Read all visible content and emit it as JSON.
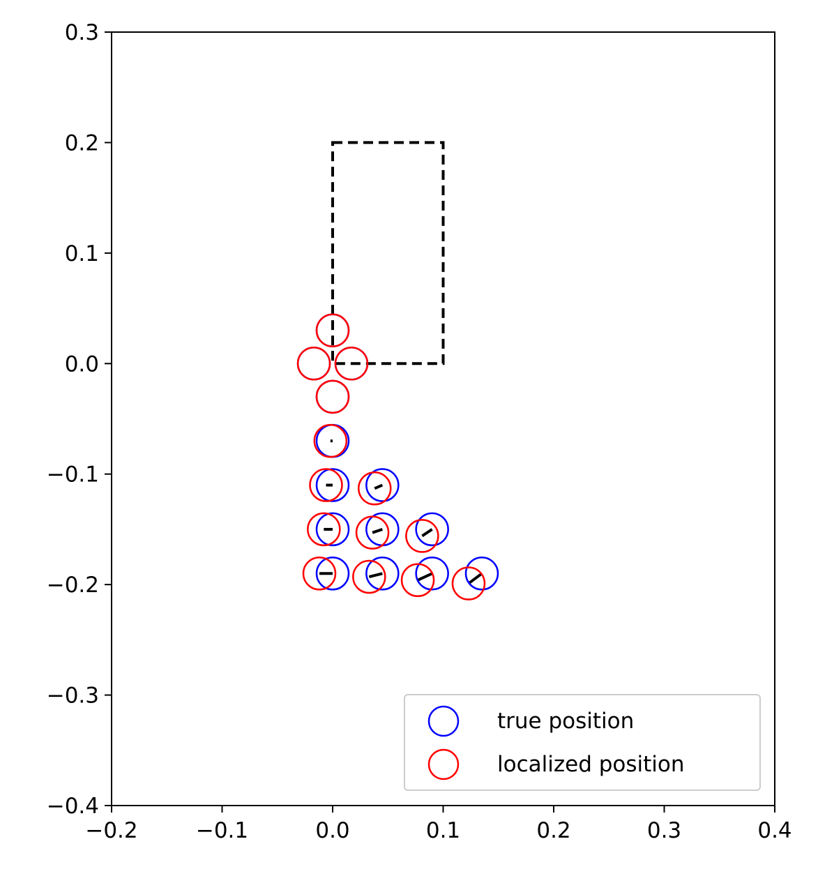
{
  "chart_data": {
    "type": "scatter",
    "title": "",
    "xlabel": "",
    "ylabel": "",
    "xlim": [
      -0.2,
      0.4
    ],
    "ylim": [
      -0.4,
      0.3
    ],
    "x_ticks": [
      -0.2,
      -0.1,
      0.0,
      0.1,
      0.2,
      0.3,
      0.4
    ],
    "y_ticks": [
      -0.4,
      -0.3,
      -0.2,
      -0.1,
      0.0,
      0.1,
      0.2,
      0.3
    ],
    "x_tick_labels": [
      "−0.2",
      "−0.1",
      "0.0",
      "0.1",
      "0.2",
      "0.3",
      "0.4"
    ],
    "y_tick_labels": [
      "−0.4",
      "−0.3",
      "−0.2",
      "−0.1",
      "0.0",
      "0.1",
      "0.2",
      "0.3"
    ],
    "grid": false,
    "legend_position": "bottom-right",
    "rectangle": {
      "x": [
        0.0,
        0.1
      ],
      "y": [
        0.0,
        0.2
      ],
      "style": "dashed",
      "color": "#000000"
    },
    "series": [
      {
        "name": "true position",
        "color": "#0000ff",
        "marker": "open-circle",
        "points": [
          {
            "x": 0.0,
            "y": 0.03
          },
          {
            "x": -0.017,
            "y": 0.0
          },
          {
            "x": 0.017,
            "y": 0.0
          },
          {
            "x": 0.0,
            "y": -0.03
          },
          {
            "x": 0.0,
            "y": -0.07
          },
          {
            "x": 0.0,
            "y": -0.11
          },
          {
            "x": 0.045,
            "y": -0.11
          },
          {
            "x": 0.0,
            "y": -0.15
          },
          {
            "x": 0.045,
            "y": -0.15
          },
          {
            "x": 0.09,
            "y": -0.15
          },
          {
            "x": 0.0,
            "y": -0.19
          },
          {
            "x": 0.045,
            "y": -0.19
          },
          {
            "x": 0.09,
            "y": -0.19
          },
          {
            "x": 0.135,
            "y": -0.19
          }
        ]
      },
      {
        "name": "localized position",
        "color": "#ff0000",
        "marker": "open-circle",
        "points": [
          {
            "x": 0.0,
            "y": 0.03
          },
          {
            "x": -0.017,
            "y": 0.0
          },
          {
            "x": 0.017,
            "y": 0.0
          },
          {
            "x": 0.0,
            "y": -0.03
          },
          {
            "x": -0.002,
            "y": -0.07
          },
          {
            "x": -0.006,
            "y": -0.11
          },
          {
            "x": 0.038,
            "y": -0.113
          },
          {
            "x": -0.008,
            "y": -0.15
          },
          {
            "x": 0.036,
            "y": -0.153
          },
          {
            "x": 0.081,
            "y": -0.156
          },
          {
            "x": -0.012,
            "y": -0.19
          },
          {
            "x": 0.033,
            "y": -0.193
          },
          {
            "x": 0.077,
            "y": -0.196
          },
          {
            "x": 0.123,
            "y": -0.199
          }
        ]
      }
    ]
  }
}
